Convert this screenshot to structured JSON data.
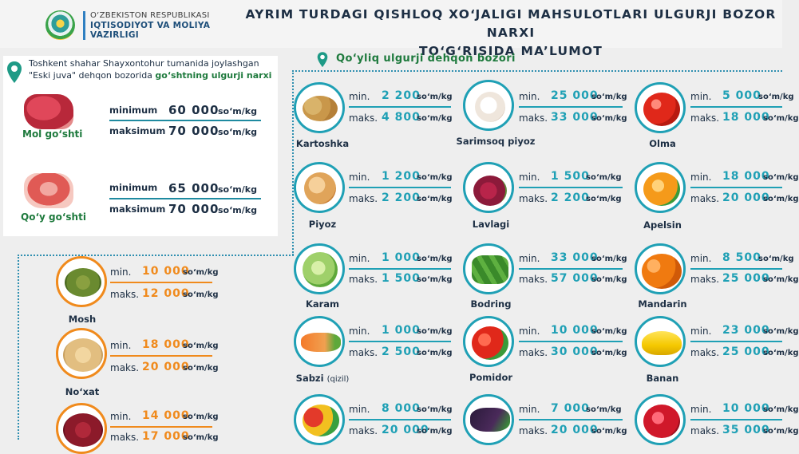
{
  "header": {
    "ministry_line1": "O‘ZBEKISTON RESPUBLIKASI",
    "ministry_line2": "IQTISODIYOT VA MOLIYA",
    "ministry_line3": "VAZIRLIGI",
    "title_line1": "AYRIM TURDAGI QISHLOQ XO‘JALIGI MAHSULOTLARI ULGURJI BOZOR NARXI",
    "title_line2": "TO‘G‘RISIDA MA’LUMOT"
  },
  "meat": {
    "caption_line1": "Toshkent shahar Shayxontohur tumanida joylashgan",
    "caption_line2_a": "\"Eski juva\" dehqon bozorida ",
    "caption_line2_b": "go‘shtning ulgurji narxi",
    "label_min": "minimum",
    "label_max": "maksimum",
    "unit": "so‘m/kg",
    "items": [
      {
        "name": "Mol go‘shti",
        "min": "60 000",
        "max": "70 000"
      },
      {
        "name": "Qo‘y go‘shti",
        "min": "65 000",
        "max": "70 000"
      }
    ]
  },
  "market": {
    "title": "Qo‘yliq ulgurji dehqon bozori"
  },
  "labels": {
    "min": "min.",
    "max": "maks.",
    "unit": "so‘m/kg"
  },
  "products": [
    {
      "name": "Kartoshka",
      "min": "2 200",
      "max": "4 800"
    },
    {
      "name": "Sarimsoq piyoz",
      "min": "25 000",
      "max": "33 000"
    },
    {
      "name": "Olma",
      "min": "5 000",
      "max": "18 000"
    },
    {
      "name": "Piyoz",
      "min": "1 200",
      "max": "2 200"
    },
    {
      "name": "Lavlagi",
      "min": "1 500",
      "max": "2 200"
    },
    {
      "name": "Apelsin",
      "min": "18 000",
      "max": "20 000"
    },
    {
      "name": "Karam",
      "min": "1 000",
      "max": "1 500"
    },
    {
      "name": "Bodring",
      "min": "33 000",
      "max": "57 000"
    },
    {
      "name": "Mandarin",
      "min": "8 500",
      "max": "25 000"
    },
    {
      "name": "Sabzi",
      "name_note": "(qizil)",
      "min": "1 000",
      "max": "2 500"
    },
    {
      "name": "Pomidor",
      "min": "10 000",
      "max": "30 000"
    },
    {
      "name": "Banan",
      "min": "23 000",
      "max": "25 000"
    },
    {
      "name": "",
      "min": "8 000",
      "max": "20 000"
    },
    {
      "name": "",
      "min": "7 000",
      "max": "20 000"
    },
    {
      "name": "",
      "min": "10 000",
      "max": "35 000"
    }
  ],
  "legumes": [
    {
      "name": "Mosh",
      "min": "10 000",
      "max": "12 000"
    },
    {
      "name": "No‘xat",
      "min": "18 000",
      "max": "20 000"
    },
    {
      "name": "",
      "min": "14 000",
      "max": "17 000"
    }
  ],
  "colors": {
    "teal": "#1fa0b5",
    "orange": "#f08a1c",
    "green": "#1e7a3d",
    "navy": "#1d2f44"
  }
}
